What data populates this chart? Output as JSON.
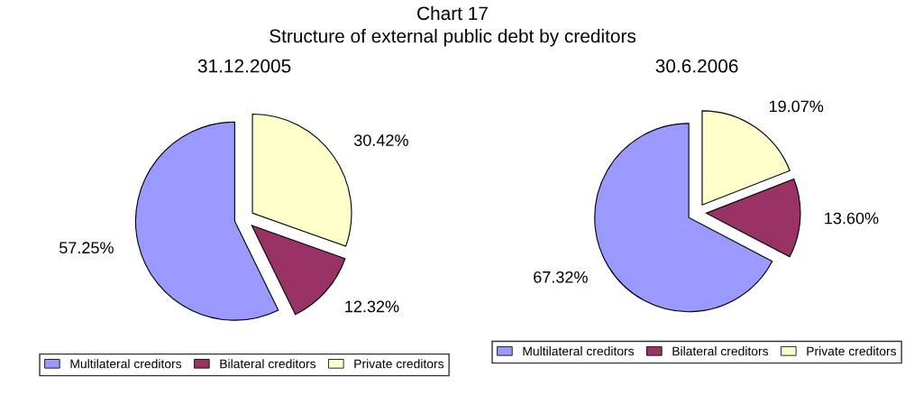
{
  "chart_data": [
    {
      "type": "other",
      "title": "Chart 17",
      "subtitle": "Structure of external public debt by creditors"
    },
    {
      "type": "pie",
      "title": "31.12.2005",
      "categories": [
        "Multilateral creditors",
        "Bilateral creditors",
        "Private creditors"
      ],
      "values": [
        57.25,
        12.32,
        30.42
      ],
      "value_labels": [
        "57.25%",
        "12.32%",
        "30.42%"
      ],
      "colors": [
        "#9999ff",
        "#993366",
        "#ffffcc"
      ],
      "legend": "bottom"
    },
    {
      "type": "pie",
      "title": "30.6.2006",
      "categories": [
        "Multilateral creditors",
        "Bilateral creditors",
        "Private creditors"
      ],
      "values": [
        67.32,
        13.6,
        19.07
      ],
      "value_labels": [
        "67.32%",
        "13.60%",
        "19.07%"
      ],
      "colors": [
        "#9999ff",
        "#993366",
        "#ffffcc"
      ],
      "legend": "bottom"
    }
  ]
}
